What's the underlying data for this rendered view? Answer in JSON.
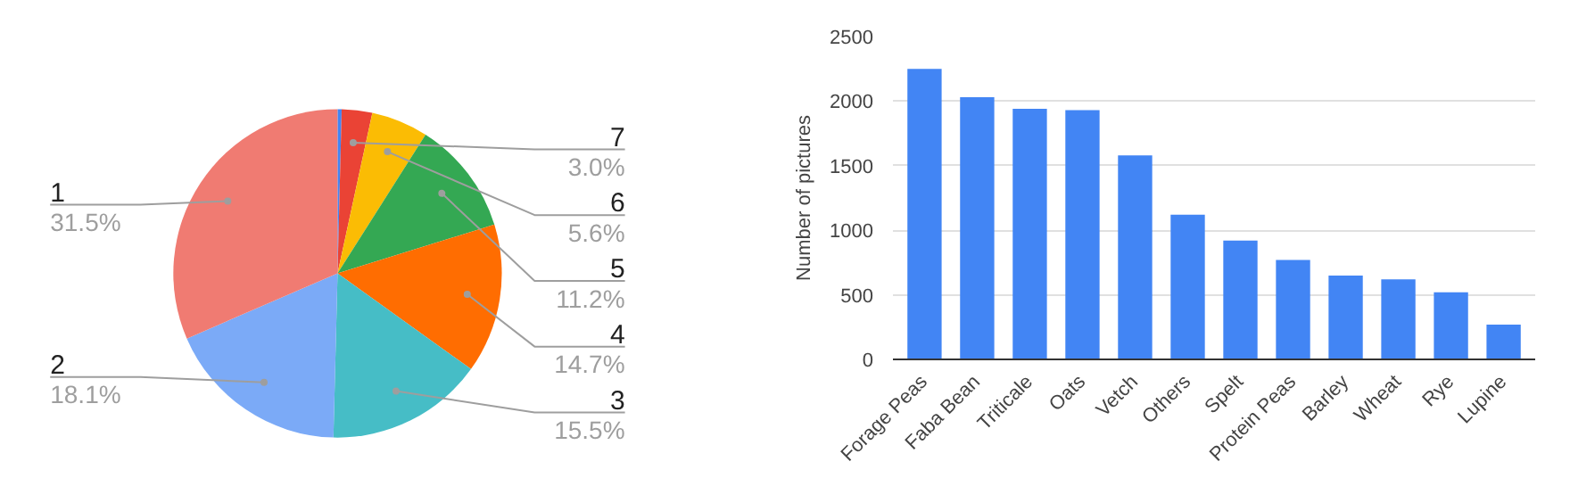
{
  "chart_data": [
    {
      "type": "pie",
      "categories": [
        null,
        "7",
        "6",
        "5",
        "4",
        "3",
        "2",
        "1"
      ],
      "values": [
        0.4,
        3.0,
        5.6,
        11.2,
        14.7,
        15.5,
        18.1,
        31.5
      ],
      "colors": [
        "#4285f4",
        "#ea4335",
        "#fbbc04",
        "#34a853",
        "#ff6d01",
        "#46bdc6",
        "#7baaf7",
        "#f07b72"
      ],
      "value_labels": [
        null,
        "3.0%",
        "5.6%",
        "11.2%",
        "14.7%",
        "15.5%",
        "18.1%",
        "31.5%"
      ]
    },
    {
      "type": "bar",
      "ylabel": "Number of pictures",
      "categories": [
        "Forage Peas",
        "Faba Bean",
        "Triticale",
        "Oats",
        "Vetch",
        "Others",
        "Spelt",
        "Protein Peas",
        "Barley",
        "Wheat",
        "Rye",
        "Lupine"
      ],
      "values": [
        2250,
        2030,
        1940,
        1930,
        1580,
        1120,
        920,
        770,
        650,
        620,
        520,
        270
      ],
      "color": "#4285f4",
      "ylim": [
        0,
        2500
      ],
      "yticks": [
        0,
        500,
        1000,
        1500,
        2000,
        2500
      ],
      "grid": "y"
    }
  ]
}
